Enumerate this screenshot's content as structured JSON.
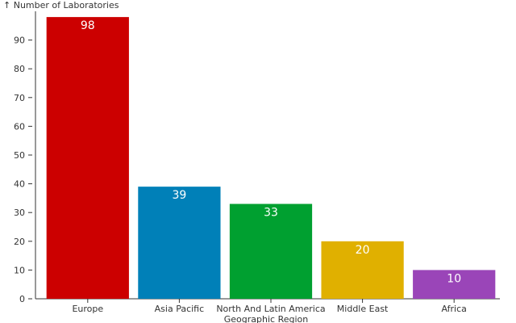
{
  "chart_data": {
    "type": "bar",
    "ylabel": "↑ Number of Laboratories",
    "xlabel": "Geographic Region",
    "categories": [
      "Europe",
      "Asia Pacific",
      "North And Latin America",
      "Middle East",
      "Africa"
    ],
    "values": [
      98,
      39,
      33,
      20,
      10
    ],
    "colors": [
      "#cc0000",
      "#0080b8",
      "#00a030",
      "#e0b000",
      "#9a45b8"
    ],
    "ylim": [
      0,
      100
    ],
    "yticks": [
      0,
      10,
      20,
      30,
      40,
      50,
      60,
      70,
      80,
      90
    ],
    "grid": false,
    "legend": "none"
  }
}
